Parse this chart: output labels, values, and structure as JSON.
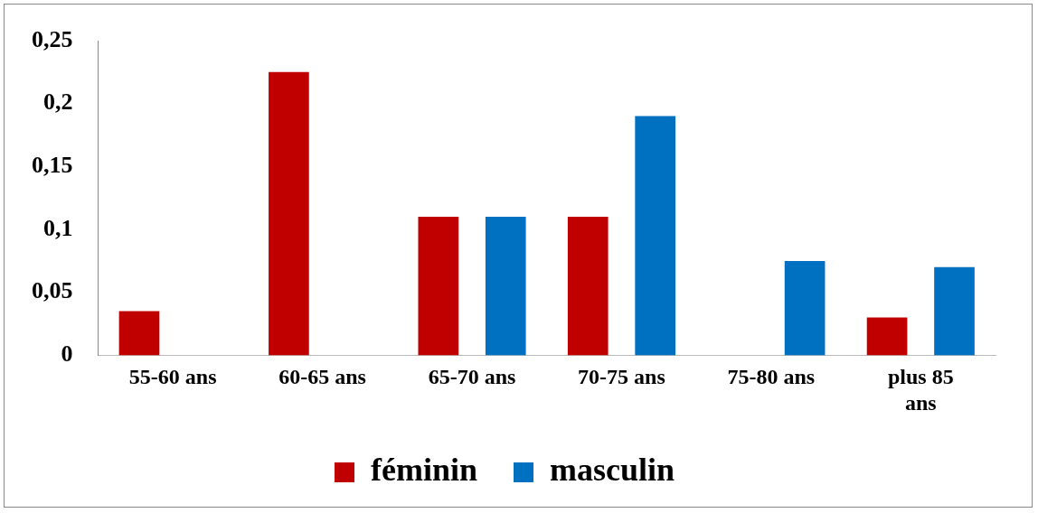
{
  "chart_data": {
    "type": "bar",
    "categories": [
      "55-60 ans",
      "60-65 ans",
      "65-70 ans",
      "70-75 ans",
      "75-80 ans",
      "plus 85 ans"
    ],
    "series": [
      {
        "name": "féminin",
        "color": "#c00000",
        "values": [
          0.035,
          0.225,
          0.11,
          0.11,
          0,
          0.03
        ]
      },
      {
        "name": "masculin",
        "color": "#0070c0",
        "values": [
          0,
          0,
          0.11,
          0.19,
          0.075,
          0.07
        ]
      }
    ],
    "ylim": [
      0,
      0.25
    ],
    "yticks": [
      0,
      {
        "value": 0.05,
        "label": "0,05"
      },
      {
        "value": 0.1,
        "label": "0,1"
      },
      {
        "value": 0.15,
        "label": "0,15"
      },
      {
        "value": 0.2,
        "label": "0,2"
      },
      {
        "value": 0.25,
        "label": "0,25"
      }
    ],
    "grid": false,
    "legend": "bottom"
  }
}
